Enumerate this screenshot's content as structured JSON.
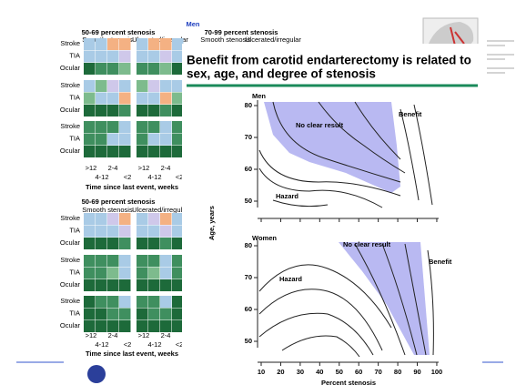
{
  "header": {
    "men_label": "Men",
    "legend_left": "50-69 percent stenosis",
    "legend_right": "70-99 percent stenosis",
    "smooth": "Smooth stenosis",
    "ulcerated": "Ulcerated/irregular"
  },
  "left_panel": {
    "row_labels": [
      "Stroke",
      "TIA",
      "Ocular"
    ],
    "col_labels_top": [
      ">12",
      "2-4"
    ],
    "col_labels_bottom": [
      "4-12",
      "<2"
    ],
    "axis_title": "Time since last event, weeks",
    "lower_title": "50-69 percent stenosis"
  },
  "slide": {
    "title_line1": "Benefit from carotid endarterectomy is related to",
    "title_line2": "sex, age, and degree of stenosis",
    "plot": {
      "men_label": "Men",
      "women_label": "Women",
      "no_clear_result": "No clear result",
      "benefit": "Benefit",
      "hazard": "Hazard",
      "y_label": "Age, years",
      "x_label": "Percent stenosis",
      "yticks": [
        50,
        60,
        70,
        80
      ],
      "xticks": [
        10,
        20,
        30,
        40,
        50,
        60,
        70,
        80,
        90,
        100
      ]
    }
  }
}
